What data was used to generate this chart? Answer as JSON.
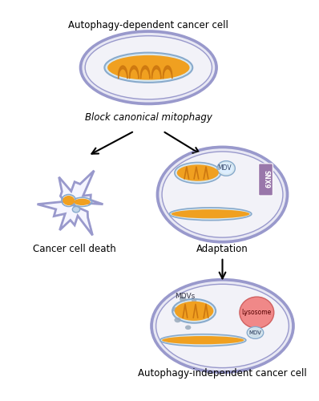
{
  "bg_color": "#ffffff",
  "cell_outer_color": "#8888bb",
  "cell_border_color": "#9999cc",
  "cell_inner_color": "#f2f2f8",
  "mito_orange": "#f0a020",
  "mito_blue_outline": "#88aacc",
  "mito_inner_bg": "#d8e8f0",
  "snx9_color": "#9977aa",
  "lysosome_color": "#f08888",
  "lysosome_edge": "#d06060",
  "mdv_vesicle_color": "#aabbcc",
  "mdv_small_color": "#8899aa",
  "title_top": "Autophagy-dependent cancer cell",
  "label_death": "Cancer cell death",
  "label_block": "Block canonical mitophagy",
  "label_adaptation": "Adaptation",
  "label_bottom": "Autophagy-independent cancer cell",
  "text_MDV": "MDV",
  "text_SNX9": "SNX9",
  "text_MDVs": "MDVs",
  "text_Lysosome": "Lysosome",
  "text_MDV2": "MDV",
  "font_size_title": 8.5,
  "font_size_label": 8.5,
  "font_size_small": 6.5,
  "font_size_tiny": 5.5
}
